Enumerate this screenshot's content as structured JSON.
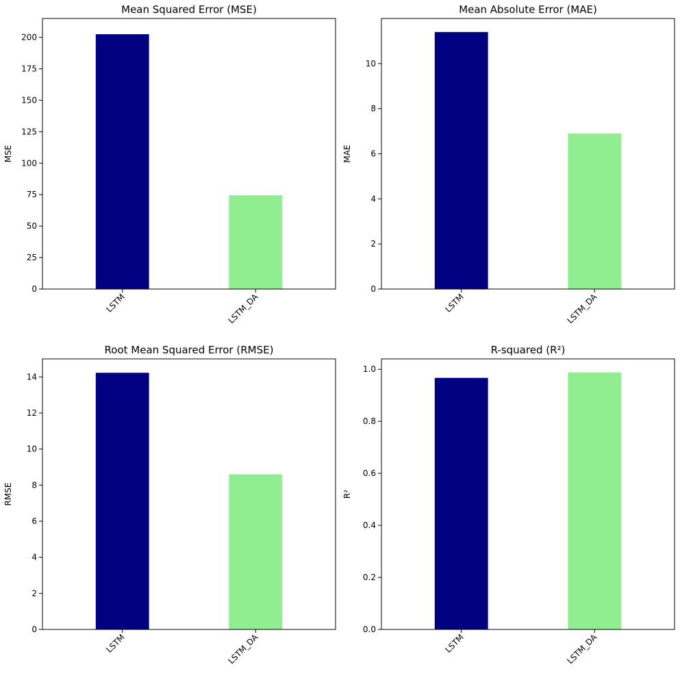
{
  "chart_data": [
    {
      "type": "bar",
      "title": "Mean Squared Error (MSE)",
      "xlabel": "",
      "ylabel": "MSE",
      "categories": [
        "LSTM",
        "LSTM_DA"
      ],
      "values": [
        202.5,
        74.5
      ],
      "colors": [
        "#000080",
        "#90ee90"
      ],
      "ylim": [
        0,
        215
      ],
      "yticks": [
        0,
        25,
        50,
        75,
        100,
        125,
        150,
        175,
        200
      ],
      "ytick_labels": [
        "0",
        "25",
        "50",
        "75",
        "100",
        "125",
        "150",
        "175",
        "200"
      ],
      "grid": false
    },
    {
      "type": "bar",
      "title": "Mean Absolute Error (MAE)",
      "xlabel": "",
      "ylabel": "MAE",
      "categories": [
        "LSTM",
        "LSTM_DA"
      ],
      "values": [
        11.4,
        6.9
      ],
      "colors": [
        "#000080",
        "#90ee90"
      ],
      "ylim": [
        0,
        12
      ],
      "yticks": [
        0,
        2,
        4,
        6,
        8,
        10
      ],
      "ytick_labels": [
        "0",
        "2",
        "4",
        "6",
        "8",
        "10"
      ],
      "grid": false
    },
    {
      "type": "bar",
      "title": "Root Mean Squared Error (RMSE)",
      "xlabel": "",
      "ylabel": "RMSE",
      "categories": [
        "LSTM",
        "LSTM_DA"
      ],
      "values": [
        14.23,
        8.6
      ],
      "colors": [
        "#000080",
        "#90ee90"
      ],
      "ylim": [
        0,
        15
      ],
      "yticks": [
        0,
        2,
        4,
        6,
        8,
        10,
        12,
        14
      ],
      "ytick_labels": [
        "0",
        "2",
        "4",
        "6",
        "8",
        "10",
        "12",
        "14"
      ],
      "grid": false
    },
    {
      "type": "bar",
      "title": "R-squared (R²)",
      "xlabel": "",
      "ylabel": "R²",
      "categories": [
        "LSTM",
        "LSTM_DA"
      ],
      "values": [
        0.967,
        0.988
      ],
      "colors": [
        "#000080",
        "#90ee90"
      ],
      "ylim": [
        0,
        1.04
      ],
      "yticks": [
        0,
        0.2,
        0.4,
        0.6,
        0.8,
        1.0
      ],
      "ytick_labels": [
        "0.0",
        "0.2",
        "0.4",
        "0.6",
        "0.8",
        "1.0"
      ],
      "grid": false
    }
  ]
}
